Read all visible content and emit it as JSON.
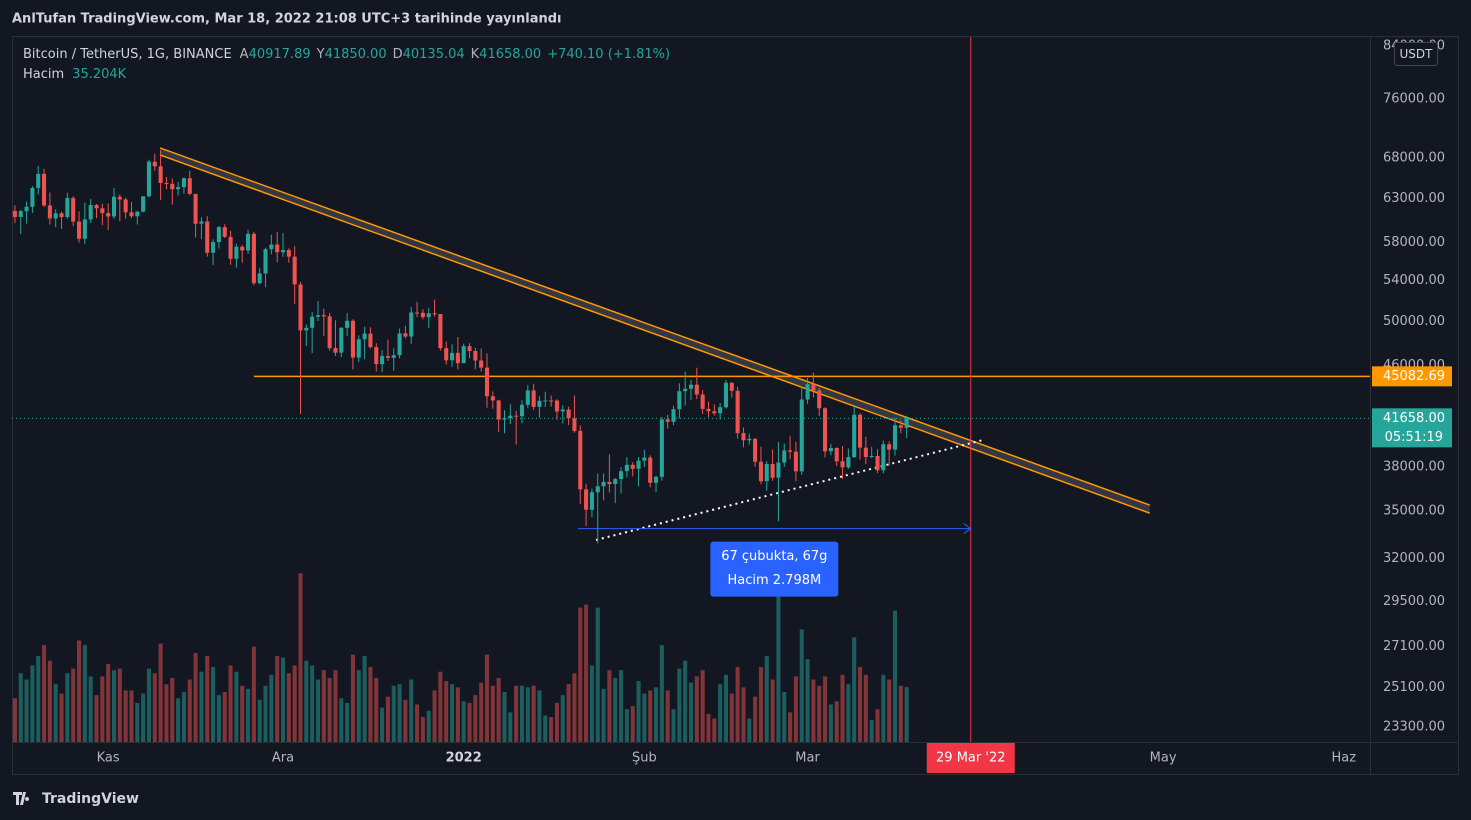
{
  "header": {
    "title": "AnlTufan TradingView.com, Mar 18, 2022 21:08 UTC+3 tarihinde yayınlandı"
  },
  "footer": {
    "brand": "TradingView"
  },
  "chart_data": {
    "type": "candlestick",
    "legend": {
      "symbol": "Bitcoin / TetherUS, 1G, BINANCE",
      "open_key": "A",
      "open": "40917.89",
      "high_key": "Y",
      "high": "41850.00",
      "low_key": "D",
      "low": "40135.04",
      "close_key": "K",
      "close": "41658.00",
      "change": "+740.10 (+1.81%)",
      "volume_key": "Hacim",
      "volume": "35.204K"
    },
    "currency": "USDT",
    "up_color": "#26a69a",
    "down_color": "#ef5350",
    "log_scale": true,
    "grid": false,
    "candles": [
      [
        61550,
        62200,
        60150,
        60860
      ],
      [
        60860,
        61700,
        58950,
        61527
      ],
      [
        61527,
        62650,
        60100,
        62042
      ],
      [
        62042,
        64500,
        61320,
        64280
      ],
      [
        64280,
        67000,
        63480,
        66001
      ],
      [
        66001,
        66640,
        62000,
        62193
      ],
      [
        62193,
        63730,
        60000,
        60688
      ],
      [
        60688,
        61750,
        59700,
        61286
      ],
      [
        61286,
        61490,
        59510,
        60852
      ],
      [
        60852,
        63710,
        60650,
        63078
      ],
      [
        63078,
        63290,
        59820,
        60328
      ],
      [
        60328,
        61500,
        58000,
        58413
      ],
      [
        58413,
        62500,
        57820,
        60575
      ],
      [
        60575,
        62980,
        60180,
        62253
      ],
      [
        62253,
        62360,
        60720,
        61859
      ],
      [
        61859,
        62400,
        59950,
        61300
      ],
      [
        61300,
        62430,
        59400,
        60911
      ],
      [
        60911,
        64270,
        60620,
        63219
      ],
      [
        63219,
        63500,
        60380,
        62896
      ],
      [
        62896,
        63100,
        60680,
        61395
      ],
      [
        61395,
        62600,
        60720,
        60937
      ],
      [
        60937,
        61560,
        60000,
        61470
      ],
      [
        61470,
        63290,
        61380,
        63273
      ],
      [
        63273,
        67790,
        63120,
        67525
      ],
      [
        67525,
        68530,
        66380,
        66947
      ],
      [
        66947,
        69000,
        62820,
        64882
      ],
      [
        64882,
        65600,
        64100,
        64774
      ],
      [
        64774,
        65450,
        62280,
        64122
      ],
      [
        64122,
        64990,
        63360,
        64380
      ],
      [
        64380,
        65550,
        63580,
        65466
      ],
      [
        65466,
        66400,
        63400,
        63557
      ],
      [
        63557,
        63560,
        58550,
        60088
      ],
      [
        60088,
        60820,
        58370,
        60345
      ],
      [
        60345,
        60950,
        56480,
        56892
      ],
      [
        56892,
        58350,
        55600,
        58052
      ],
      [
        58052,
        59850,
        57350,
        59707
      ],
      [
        59707,
        60030,
        58490,
        58622
      ],
      [
        58622,
        59290,
        55610,
        56247
      ],
      [
        56247,
        57880,
        55320,
        57541
      ],
      [
        57541,
        57740,
        55840,
        57138
      ],
      [
        57138,
        59400,
        56780,
        58960
      ],
      [
        58960,
        59180,
        53500,
        53726
      ],
      [
        53726,
        55280,
        53610,
        54721
      ],
      [
        54721,
        57440,
        53330,
        57274
      ],
      [
        57274,
        58870,
        56730,
        57776
      ],
      [
        57776,
        59180,
        55880,
        56950
      ],
      [
        56950,
        59050,
        56460,
        57184
      ],
      [
        57184,
        57380,
        55840,
        56480
      ],
      [
        56480,
        57600,
        51680,
        53601
      ],
      [
        53601,
        53860,
        42000,
        49152
      ],
      [
        49152,
        49700,
        47730,
        49397
      ],
      [
        49397,
        50880,
        47100,
        50441
      ],
      [
        50441,
        51940,
        50040,
        50588
      ],
      [
        50588,
        51200,
        48620,
        50471
      ],
      [
        50471,
        50800,
        47320,
        47545
      ],
      [
        47545,
        50100,
        46850,
        47140
      ],
      [
        47140,
        49480,
        46750,
        49389
      ],
      [
        49389,
        50800,
        48640,
        50053
      ],
      [
        50053,
        50200,
        45670,
        46702
      ],
      [
        46702,
        48700,
        46300,
        48343
      ],
      [
        48343,
        49500,
        46550,
        48864
      ],
      [
        48864,
        49440,
        47510,
        47632
      ],
      [
        47632,
        47990,
        45500,
        46131
      ],
      [
        46131,
        47360,
        45460,
        46834
      ],
      [
        46834,
        48300,
        46400,
        46681
      ],
      [
        46681,
        47540,
        45560,
        46914
      ],
      [
        46914,
        49330,
        46630,
        48889
      ],
      [
        48889,
        49580,
        48420,
        48588
      ],
      [
        48588,
        51380,
        47920,
        50838
      ],
      [
        50838,
        51870,
        50400,
        50820
      ],
      [
        50820,
        51160,
        50190,
        50399
      ],
      [
        50399,
        51280,
        49400,
        50775
      ],
      [
        50775,
        52090,
        50450,
        50701
      ],
      [
        50701,
        50700,
        47310,
        47543
      ],
      [
        47543,
        48140,
        46100,
        46464
      ],
      [
        46464,
        47880,
        45900,
        47120
      ],
      [
        47120,
        48550,
        45680,
        46216
      ],
      [
        46216,
        47950,
        46210,
        47722
      ],
      [
        47722,
        47990,
        46650,
        47286
      ],
      [
        47286,
        47570,
        45700,
        46446
      ],
      [
        46446,
        47510,
        45500,
        45833
      ],
      [
        45833,
        47070,
        42500,
        43425
      ],
      [
        43425,
        43820,
        42430,
        43082
      ],
      [
        43082,
        43140,
        40610,
        41566
      ],
      [
        41566,
        42300,
        40500,
        41679
      ],
      [
        41679,
        42790,
        41200,
        41864
      ],
      [
        41864,
        42250,
        39650,
        41822
      ],
      [
        41822,
        43100,
        41270,
        42729
      ],
      [
        42729,
        44350,
        42450,
        43902
      ],
      [
        43902,
        44460,
        42310,
        42560
      ],
      [
        42560,
        43450,
        41720,
        43059
      ],
      [
        43059,
        43800,
        42560,
        43084
      ],
      [
        43084,
        43480,
        42580,
        43071
      ],
      [
        43071,
        43170,
        41540,
        42201
      ],
      [
        42201,
        42690,
        41250,
        42352
      ],
      [
        42352,
        42580,
        41140,
        41660
      ],
      [
        41660,
        43500,
        40550,
        40680
      ],
      [
        40680,
        41100,
        35440,
        36445
      ],
      [
        36445,
        36830,
        34010,
        35071
      ],
      [
        35071,
        36500,
        34600,
        36244
      ],
      [
        36244,
        37550,
        32920,
        36660
      ],
      [
        36660,
        37550,
        35700,
        36958
      ],
      [
        36958,
        38920,
        36230,
        36810
      ],
      [
        36810,
        37230,
        35510,
        37160
      ],
      [
        37160,
        38000,
        36160,
        37716
      ],
      [
        37716,
        38720,
        37270,
        38166
      ],
      [
        38166,
        38360,
        37350,
        37881
      ],
      [
        37881,
        38740,
        36630,
        38466
      ],
      [
        38466,
        39270,
        38000,
        38690
      ],
      [
        38690,
        38850,
        36590,
        36896
      ],
      [
        36896,
        37390,
        36250,
        37311
      ],
      [
        37311,
        41770,
        37040,
        41574
      ],
      [
        41574,
        41940,
        40840,
        41382
      ],
      [
        41382,
        42660,
        41120,
        42380
      ],
      [
        42380,
        44500,
        41650,
        43839
      ],
      [
        43839,
        45490,
        42670,
        44043
      ],
      [
        44043,
        44800,
        43120,
        44379
      ],
      [
        44379,
        45820,
        43190,
        43565
      ],
      [
        43565,
        43920,
        42000,
        42407
      ],
      [
        42407,
        43000,
        41750,
        42217
      ],
      [
        42217,
        42760,
        41870,
        42053
      ],
      [
        42053,
        42880,
        41570,
        42535
      ],
      [
        42535,
        44770,
        42430,
        44544
      ],
      [
        44544,
        44580,
        43310,
        43873
      ],
      [
        43873,
        44200,
        40080,
        40515
      ],
      [
        40515,
        40950,
        39450,
        39974
      ],
      [
        39974,
        40480,
        39640,
        40079
      ],
      [
        40079,
        40150,
        38020,
        38386
      ],
      [
        38386,
        39490,
        36800,
        37009
      ],
      [
        37009,
        38430,
        36350,
        38230
      ],
      [
        38230,
        39280,
        37040,
        37250
      ],
      [
        37250,
        39840,
        34320,
        38328
      ],
      [
        38328,
        39730,
        38010,
        39219
      ],
      [
        39219,
        40300,
        38570,
        39116
      ],
      [
        39116,
        39860,
        37000,
        37700
      ],
      [
        37700,
        44230,
        37450,
        43160
      ],
      [
        43160,
        44950,
        42810,
        44421
      ],
      [
        44421,
        45400,
        43330,
        43892
      ],
      [
        43892,
        44100,
        41830,
        42455
      ],
      [
        42455,
        42530,
        38700,
        39148
      ],
      [
        39148,
        39700,
        38850,
        39397
      ],
      [
        39397,
        39450,
        38090,
        38420
      ],
      [
        38420,
        39550,
        37160,
        37988
      ],
      [
        37988,
        39360,
        37870,
        38730
      ],
      [
        38730,
        42600,
        38660,
        41941
      ],
      [
        41941,
        42050,
        38540,
        39422
      ],
      [
        39422,
        40240,
        38220,
        38730
      ],
      [
        38730,
        39490,
        38660,
        38807
      ],
      [
        38807,
        39310,
        37580,
        37778
      ],
      [
        37778,
        39950,
        37560,
        39671
      ],
      [
        39671,
        39890,
        38100,
        39280
      ],
      [
        39280,
        41720,
        38830,
        41114
      ],
      [
        41114,
        41480,
        40500,
        40917.89
      ],
      [
        40917.89,
        41850,
        40135.04,
        41658
      ]
    ],
    "volume": [
      28,
      44,
      40,
      49,
      55,
      62,
      52,
      37,
      31,
      44,
      47,
      65,
      62,
      42,
      30,
      42,
      50,
      46,
      47,
      33,
      33,
      25,
      31,
      47,
      44,
      63,
      37,
      41,
      28,
      32,
      40,
      57,
      45,
      55,
      48,
      30,
      32,
      49,
      45,
      36,
      34,
      61,
      27,
      36,
      43,
      55,
      54,
      44,
      49,
      108,
      52,
      49,
      40,
      46,
      41,
      46,
      28,
      25,
      56,
      46,
      55,
      48,
      41,
      22,
      29,
      36,
      37,
      27,
      40,
      24,
      16,
      20,
      33,
      45,
      39,
      37,
      35,
      26,
      25,
      30,
      38,
      56,
      36,
      41,
      32,
      19,
      36,
      36,
      35,
      36,
      33,
      17,
      16,
      25,
      30,
      37,
      44,
      86,
      88,
      49,
      86,
      34,
      46,
      41,
      46,
      21,
      23,
      39,
      31,
      33,
      35,
      62,
      33,
      21,
      47,
      52,
      38,
      42,
      46,
      18,
      15,
      37,
      43,
      31,
      48,
      35,
      15,
      29,
      48,
      55,
      40,
      116,
      32,
      19,
      42,
      72,
      53,
      40,
      36,
      42,
      24,
      26,
      43,
      37,
      67,
      48,
      43,
      14,
      21,
      43,
      40,
      84,
      36,
      35.204
    ],
    "xlim": [
      -0.5,
      232.5
    ],
    "xticks": [
      {
        "value": 16,
        "label": "Kas"
      },
      {
        "value": 46,
        "label": "Ara"
      },
      {
        "value": 77,
        "label": "2022"
      },
      {
        "value": 108,
        "label": "Şub"
      },
      {
        "value": 136,
        "label": "Mar"
      },
      {
        "value": 197,
        "label": "May"
      },
      {
        "value": 228,
        "label": "Haz"
      }
    ],
    "ylim": [
      22650,
      85400
    ],
    "yticks": [
      {
        "value": 23300,
        "label": "23300.00"
      },
      {
        "value": 25100,
        "label": "25100.00"
      },
      {
        "value": 27100,
        "label": "27100.00"
      },
      {
        "value": 29500,
        "label": "29500.00"
      },
      {
        "value": 32000,
        "label": "32000.00"
      },
      {
        "value": 35000,
        "label": "35000.00"
      },
      {
        "value": 38000,
        "label": "38000.00"
      },
      {
        "value": 46000,
        "label": "46000.00"
      },
      {
        "value": 50000,
        "label": "50000.00"
      },
      {
        "value": 54000,
        "label": "54000.00"
      },
      {
        "value": 58000,
        "label": "58000.00"
      },
      {
        "value": 63000,
        "label": "63000.00"
      },
      {
        "value": 68000,
        "label": "68000.00"
      },
      {
        "value": 76000,
        "label": "76000.00"
      },
      {
        "value": 84000,
        "label": "84000.00"
      }
    ],
    "annotations": {
      "horizontal_line": {
        "value": 45082.69,
        "start": 41,
        "color": "#ff9800"
      },
      "last_price": {
        "value": 41658,
        "label": "41658.00",
        "countdown": "05:51:19"
      },
      "vertical_line": {
        "value": 164,
        "label": "29 Mar '22",
        "color": "#f23645"
      },
      "channel": {
        "color": "#ff9800",
        "upper": [
          [
            24.9,
            69300
          ],
          [
            194.7,
            35380
          ]
        ],
        "lower": [
          [
            24.9,
            68400
          ],
          [
            194.7,
            34850
          ]
        ]
      },
      "support_line": [
        [
          99.7,
          33130
        ],
        [
          165.9,
          39970
        ]
      ],
      "measure": {
        "from": 96.6,
        "to": 164,
        "price": 33850,
        "lines": [
          "67 çubukta, 67g",
          "Hacim 2.798M"
        ]
      }
    }
  }
}
